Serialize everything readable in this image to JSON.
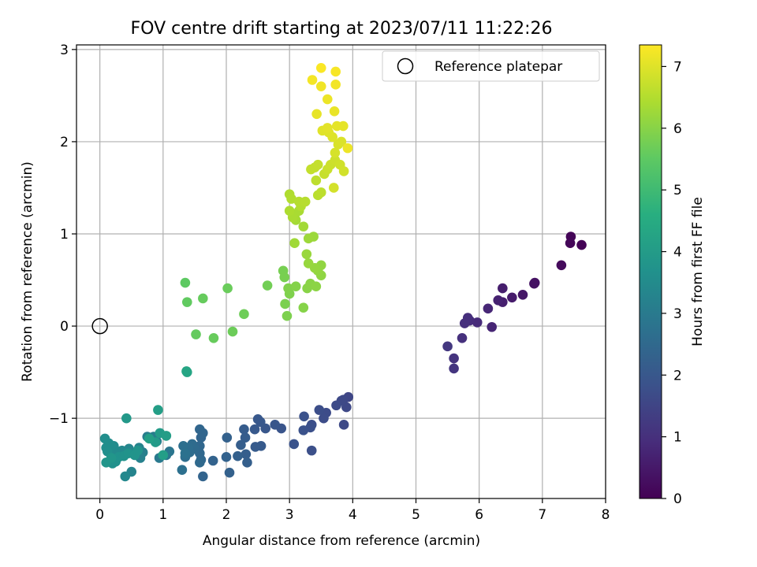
{
  "chart_data": {
    "type": "scatter",
    "title": "FOV centre drift starting at 2023/07/11 11:22:26",
    "xlabel": "Angular distance from reference (arcmin)",
    "ylabel": "Rotation from reference (arcmin)",
    "xlim": [
      -0.37,
      8.0
    ],
    "ylim": [
      -1.87,
      3.05
    ],
    "xticks": [
      "0",
      "1",
      "2",
      "3",
      "4",
      "5",
      "6",
      "7",
      "8"
    ],
    "yticks": [
      "−1",
      "0",
      "1",
      "2",
      "3"
    ],
    "grid": true,
    "legend": {
      "position": "top-right",
      "entries": [
        "Reference platepar"
      ]
    },
    "colorbar": {
      "label": "Hours from first FF file",
      "range": [
        0,
        7.35
      ],
      "ticks": [
        "0",
        "1",
        "2",
        "3",
        "4",
        "5",
        "6",
        "7"
      ],
      "colormap": "viridis"
    },
    "reference_point": {
      "x": 0,
      "y": 0,
      "label": "Reference platepar"
    },
    "points": [
      [
        7.62,
        0.88,
        0.05
      ],
      [
        7.45,
        0.97,
        0.08
      ],
      [
        7.44,
        0.9,
        0.1
      ],
      [
        7.3,
        0.66,
        0.2
      ],
      [
        6.87,
        0.46,
        0.35
      ],
      [
        6.88,
        0.47,
        0.36
      ],
      [
        6.69,
        0.34,
        0.45
      ],
      [
        6.52,
        0.31,
        0.55
      ],
      [
        6.37,
        0.41,
        0.6
      ],
      [
        6.37,
        0.26,
        0.62
      ],
      [
        6.3,
        0.28,
        0.68
      ],
      [
        6.2,
        -0.01,
        0.75
      ],
      [
        6.14,
        0.19,
        0.8
      ],
      [
        5.97,
        0.04,
        0.88
      ],
      [
        5.85,
        0.06,
        0.93
      ],
      [
        5.82,
        0.09,
        0.96
      ],
      [
        5.77,
        0.03,
        1.0
      ],
      [
        5.73,
        -0.13,
        1.03
      ],
      [
        5.6,
        -0.35,
        1.1
      ],
      [
        5.6,
        -0.46,
        1.12
      ],
      [
        5.5,
        -0.22,
        1.18
      ],
      [
        3.93,
        -0.77,
        1.55
      ],
      [
        3.9,
        -0.88,
        1.58
      ],
      [
        3.85,
        -0.8,
        1.6
      ],
      [
        3.82,
        -0.81,
        1.62
      ],
      [
        3.86,
        -1.07,
        1.63
      ],
      [
        3.74,
        -0.86,
        1.66
      ],
      [
        3.58,
        -0.94,
        1.7
      ],
      [
        3.54,
        -1.0,
        1.72
      ],
      [
        3.47,
        -0.91,
        1.74
      ],
      [
        3.35,
        -1.07,
        1.77
      ],
      [
        3.35,
        -1.35,
        1.79
      ],
      [
        3.33,
        -1.1,
        1.8
      ],
      [
        3.22,
        -1.13,
        1.83
      ],
      [
        3.23,
        -0.98,
        1.85
      ],
      [
        3.07,
        -1.28,
        1.88
      ],
      [
        2.87,
        -1.11,
        1.92
      ],
      [
        2.77,
        -1.07,
        1.95
      ],
      [
        2.62,
        -1.11,
        1.98
      ],
      [
        2.5,
        -1.01,
        2.0
      ],
      [
        2.54,
        -1.04,
        2.02
      ],
      [
        2.45,
        -1.12,
        2.05
      ],
      [
        2.55,
        -1.3,
        2.08
      ],
      [
        2.46,
        -1.31,
        2.1
      ],
      [
        2.28,
        -1.12,
        2.12
      ],
      [
        2.3,
        -1.21,
        2.15
      ],
      [
        2.23,
        -1.29,
        2.17
      ],
      [
        2.31,
        -1.39,
        2.19
      ],
      [
        2.33,
        -1.48,
        2.21
      ],
      [
        2.18,
        -1.41,
        2.24
      ],
      [
        2.05,
        -1.59,
        2.26
      ],
      [
        2.01,
        -1.21,
        2.28
      ],
      [
        2.0,
        -1.42,
        2.3
      ],
      [
        1.79,
        -1.46,
        2.33
      ],
      [
        1.63,
        -1.63,
        2.35
      ],
      [
        1.6,
        -1.21,
        2.38
      ],
      [
        1.63,
        -1.16,
        2.4
      ],
      [
        1.58,
        -1.12,
        2.42
      ],
      [
        1.58,
        -1.3,
        2.44
      ],
      [
        1.58,
        -1.38,
        2.46
      ],
      [
        1.6,
        -1.45,
        2.48
      ],
      [
        1.58,
        -1.48,
        2.5
      ],
      [
        1.5,
        -1.33,
        2.53
      ],
      [
        1.46,
        -1.28,
        2.55
      ],
      [
        1.42,
        -1.37,
        2.58
      ],
      [
        1.37,
        -1.35,
        2.6
      ],
      [
        1.4,
        -1.32,
        2.62
      ],
      [
        1.35,
        -1.42,
        2.65
      ],
      [
        1.32,
        -1.3,
        2.68
      ],
      [
        1.3,
        -1.56,
        2.7
      ],
      [
        1.35,
        -1.38,
        2.73
      ],
      [
        1.1,
        -1.36,
        2.85
      ],
      [
        1.05,
        -1.4,
        2.9
      ],
      [
        0.94,
        -1.43,
        2.95
      ],
      [
        0.9,
        -1.25,
        3.0
      ],
      [
        0.85,
        -1.2,
        3.05
      ],
      [
        0.75,
        -1.2,
        3.1
      ],
      [
        0.68,
        -1.37,
        3.15
      ],
      [
        0.64,
        -1.43,
        3.2
      ],
      [
        0.62,
        -1.32,
        3.25
      ],
      [
        0.5,
        -1.58,
        3.3
      ],
      [
        0.46,
        -1.33,
        3.35
      ],
      [
        0.43,
        -1.38,
        3.38
      ],
      [
        0.4,
        -1.63,
        3.4
      ],
      [
        0.35,
        -1.35,
        3.42
      ],
      [
        0.3,
        -1.4,
        3.45
      ],
      [
        0.25,
        -1.35,
        3.48
      ],
      [
        0.22,
        -1.3,
        3.5
      ],
      [
        0.18,
        -1.3,
        3.52
      ],
      [
        0.14,
        -1.27,
        3.55
      ],
      [
        0.1,
        -1.32,
        3.58
      ],
      [
        0.08,
        -1.22,
        3.6
      ],
      [
        0.12,
        -1.36,
        3.62
      ],
      [
        0.2,
        -1.49,
        3.65
      ],
      [
        0.25,
        -1.47,
        3.68
      ],
      [
        0.3,
        -1.42,
        3.7
      ],
      [
        0.38,
        -1.41,
        3.72
      ],
      [
        0.45,
        -1.38,
        3.74
      ],
      [
        0.55,
        -1.4,
        3.76
      ],
      [
        0.6,
        -1.35,
        3.78
      ],
      [
        0.1,
        -1.48,
        3.8
      ],
      [
        0.18,
        -1.43,
        3.82
      ],
      [
        0.42,
        -1.0,
        3.9
      ],
      [
        0.88,
        -1.26,
        3.95
      ],
      [
        0.95,
        -1.16,
        4.0
      ],
      [
        1.05,
        -1.19,
        4.05
      ],
      [
        1.0,
        -1.4,
        4.08
      ],
      [
        0.92,
        -0.91,
        4.1
      ],
      [
        0.78,
        -1.22,
        4.12
      ],
      [
        1.38,
        -0.5,
        4.3
      ],
      [
        1.37,
        -0.49,
        4.32
      ],
      [
        1.35,
        0.47,
        5.5
      ],
      [
        1.38,
        0.26,
        5.55
      ],
      [
        1.52,
        -0.09,
        5.58
      ],
      [
        1.63,
        0.3,
        5.6
      ],
      [
        1.8,
        -0.13,
        5.62
      ],
      [
        2.02,
        0.41,
        5.65
      ],
      [
        2.1,
        -0.06,
        5.68
      ],
      [
        2.28,
        0.13,
        5.7
      ],
      [
        2.65,
        0.44,
        5.75
      ],
      [
        2.9,
        0.6,
        5.8
      ],
      [
        2.92,
        0.53,
        5.82
      ],
      [
        2.93,
        0.24,
        5.85
      ],
      [
        2.96,
        0.11,
        5.87
      ],
      [
        3.0,
        0.35,
        5.9
      ],
      [
        2.98,
        0.41,
        5.92
      ],
      [
        3.1,
        0.43,
        5.95
      ],
      [
        3.22,
        0.2,
        5.98
      ],
      [
        3.28,
        0.41,
        6.0
      ],
      [
        3.33,
        0.46,
        6.02
      ],
      [
        3.42,
        0.43,
        6.05
      ],
      [
        3.5,
        0.55,
        6.08
      ],
      [
        3.5,
        0.66,
        6.1
      ],
      [
        3.45,
        0.6,
        6.12
      ],
      [
        3.4,
        0.63,
        6.15
      ],
      [
        3.3,
        0.68,
        6.18
      ],
      [
        3.27,
        0.78,
        6.2
      ],
      [
        3.38,
        0.97,
        6.22
      ],
      [
        3.3,
        0.95,
        6.25
      ],
      [
        3.08,
        0.9,
        6.28
      ],
      [
        3.22,
        1.08,
        6.3
      ],
      [
        3.1,
        1.15,
        6.33
      ],
      [
        3.08,
        1.2,
        6.35
      ],
      [
        3.15,
        1.25,
        6.38
      ],
      [
        3.05,
        1.18,
        6.4
      ],
      [
        3.0,
        1.25,
        6.43
      ],
      [
        3.0,
        1.43,
        6.45
      ],
      [
        3.03,
        1.38,
        6.48
      ],
      [
        3.18,
        1.3,
        6.5
      ],
      [
        3.15,
        1.35,
        6.52
      ],
      [
        3.25,
        1.35,
        6.55
      ],
      [
        3.45,
        1.42,
        6.58
      ],
      [
        3.5,
        1.45,
        6.6
      ],
      [
        3.42,
        1.58,
        6.62
      ],
      [
        3.4,
        1.72,
        6.65
      ],
      [
        3.34,
        1.7,
        6.68
      ],
      [
        3.45,
        1.75,
        6.7
      ],
      [
        3.55,
        1.65,
        6.72
      ],
      [
        3.6,
        1.7,
        6.75
      ],
      [
        3.65,
        1.75,
        6.78
      ],
      [
        3.72,
        1.8,
        6.8
      ],
      [
        3.8,
        1.75,
        6.82
      ],
      [
        3.86,
        1.68,
        6.85
      ],
      [
        3.7,
        1.5,
        6.87
      ],
      [
        3.72,
        1.88,
        6.9
      ],
      [
        3.77,
        1.97,
        6.92
      ],
      [
        3.82,
        2.0,
        6.95
      ],
      [
        3.68,
        2.05,
        6.98
      ],
      [
        3.62,
        2.1,
        7.0
      ],
      [
        3.52,
        2.12,
        7.02
      ],
      [
        3.6,
        2.15,
        7.05
      ],
      [
        3.75,
        2.17,
        7.07
      ],
      [
        3.85,
        2.17,
        7.08
      ],
      [
        3.43,
        2.3,
        7.1
      ],
      [
        3.71,
        2.33,
        7.12
      ],
      [
        3.6,
        2.46,
        7.15
      ],
      [
        3.92,
        1.93,
        7.17
      ],
      [
        3.5,
        2.6,
        7.2
      ],
      [
        3.73,
        2.62,
        7.22
      ],
      [
        3.36,
        2.67,
        7.25
      ],
      [
        3.73,
        2.76,
        7.28
      ],
      [
        3.5,
        2.8,
        7.32
      ]
    ]
  }
}
